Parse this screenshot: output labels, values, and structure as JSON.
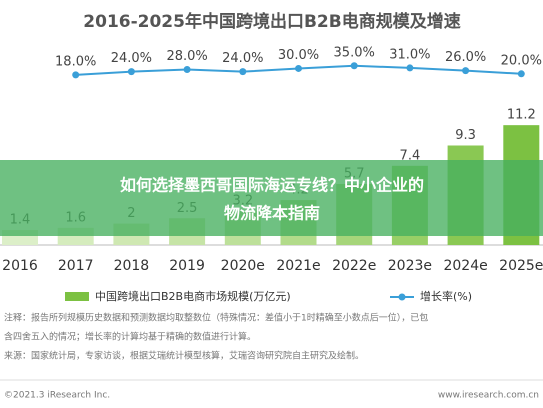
{
  "chart_data": {
    "type": "bar",
    "title": "2016-2025年中国跨境出口B2B电商规模及增速",
    "categories": [
      "2016",
      "2017",
      "2018",
      "2019",
      "2020e",
      "2021e",
      "2022e",
      "2023e",
      "2024e",
      "2025e"
    ],
    "series": [
      {
        "name": "中国跨境出口B2B电商市场规模(万亿元)",
        "color": "#7cc142",
        "colors": [
          "#dcefc8",
          "#d5ecbd",
          "#cfe8b2",
          "#c6e4a6",
          "#bde09a",
          "#b2db8a",
          "#a6d57a",
          "#98cf66",
          "#8ac853",
          "#7cc142"
        ],
        "values": [
          1.4,
          1.6,
          2.0,
          2.5,
          3.2,
          4.2,
          5.7,
          7.4,
          9.3,
          11.2
        ]
      },
      {
        "name": "增长率(%)",
        "color": "#3a9fd8",
        "axis": "y2",
        "values": [
          null,
          18.0,
          24.0,
          28.0,
          24.0,
          30.0,
          35.0,
          31.0,
          26.0,
          20.0
        ],
        "value_labels": [
          null,
          "18.0%",
          "24.0%",
          "28.0%",
          "24.0%",
          "30.0%",
          "35.0%",
          "31.0%",
          "26.0%",
          "20.0%"
        ]
      }
    ],
    "ylim": [
      0,
      20
    ],
    "y2lim": [
      -300,
      100
    ],
    "notes": [
      "注释：报告所列规模历史数据和预测数据均取整数位（特殊情况：差值小于1时精确至小数点后一位），已包",
      "含四舍五入的情况；增长率的计算均基于精确的数值进行计算。",
      "来源：国家统计局，专家访谈，根据艾瑞统计模型核算，艾瑞咨询研究院自主研究及绘制。"
    ],
    "footer_left": "©2021.3 iResearch Inc.",
    "footer_right": "www.iresearch.com.cn"
  },
  "overlay": {
    "lines": [
      "如何选择墨西哥国际海运专线？中小企业的",
      "物流降本指南"
    ]
  }
}
